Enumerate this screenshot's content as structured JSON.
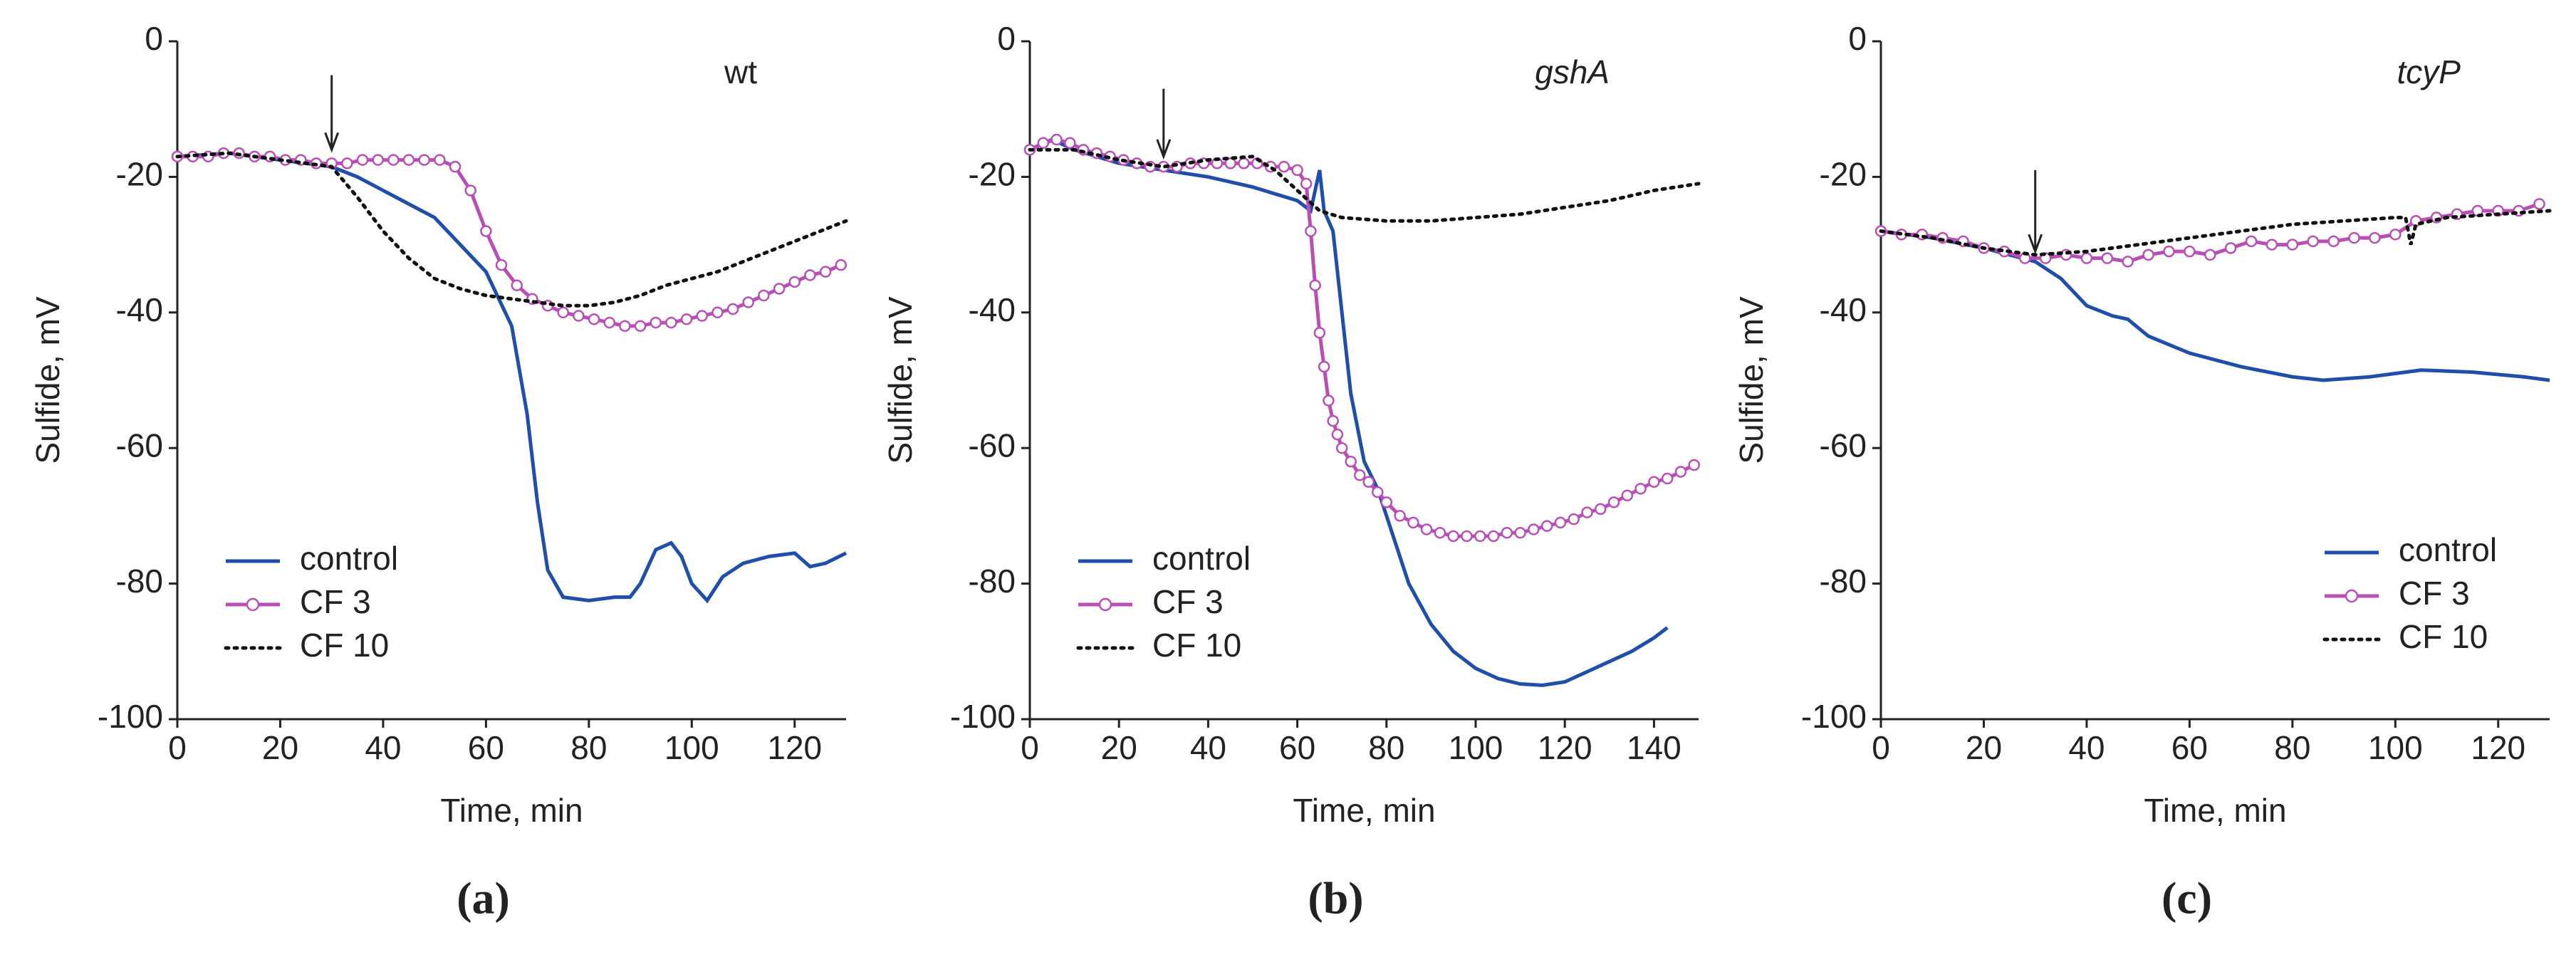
{
  "chart_data": [
    {
      "type": "line",
      "title": "wt",
      "title_italic": false,
      "caption": "(a)",
      "xlabel": "Time, min",
      "ylabel": "Sulfide, mV",
      "xlim": [
        0,
        130
      ],
      "ylim": [
        -100,
        0
      ],
      "xticks": [
        0,
        20,
        40,
        60,
        80,
        100,
        120
      ],
      "yticks": [
        0,
        -20,
        -40,
        -60,
        -80,
        -100
      ],
      "legend": "lower left",
      "arrow": {
        "x": 30,
        "y": [
          -5,
          -16
        ]
      },
      "series": [
        {
          "name": "control",
          "color": "#1f4fa8",
          "x": [
            0,
            10,
            20,
            30,
            35,
            40,
            45,
            50,
            55,
            60,
            65,
            68,
            70,
            72,
            75,
            80,
            85,
            88,
            90,
            93,
            96,
            98,
            100,
            103,
            106,
            110,
            115,
            120,
            123,
            126,
            130
          ],
          "values": [
            -17,
            -16.5,
            -17.5,
            -18.5,
            -20,
            -22,
            -24,
            -26,
            -30,
            -34,
            -42,
            -55,
            -68,
            -78,
            -82,
            -82.5,
            -82,
            -82,
            -80,
            -75,
            -74,
            -76,
            -80,
            -82.5,
            -79,
            -77,
            -76,
            -75.5,
            -77.5,
            -77,
            -75.5
          ]
        },
        {
          "name": "CF 3",
          "color": "#b94fb5",
          "marker": "circle",
          "x": [
            0,
            3,
            6,
            9,
            12,
            15,
            18,
            21,
            24,
            27,
            30,
            33,
            36,
            39,
            42,
            45,
            48,
            51,
            54,
            57,
            60,
            63,
            66,
            69,
            72,
            75,
            78,
            81,
            84,
            87,
            90,
            93,
            96,
            99,
            102,
            105,
            108,
            111,
            114,
            117,
            120,
            123,
            126,
            129
          ],
          "values": [
            -17,
            -17,
            -17,
            -16.5,
            -16.5,
            -17,
            -17,
            -17.5,
            -17.5,
            -18,
            -18,
            -18,
            -17.5,
            -17.5,
            -17.5,
            -17.5,
            -17.5,
            -17.5,
            -18.5,
            -22,
            -28,
            -33,
            -36,
            -38,
            -39,
            -40,
            -40.5,
            -41,
            -41.5,
            -42,
            -42,
            -41.5,
            -41.5,
            -41,
            -40.5,
            -40,
            -39.5,
            -38.5,
            -37.5,
            -36.5,
            -35.5,
            -34.5,
            -34,
            -33
          ]
        },
        {
          "name": "CF 10",
          "color": "#111111",
          "dash": "dotted",
          "x": [
            0,
            10,
            20,
            30,
            35,
            40,
            45,
            50,
            55,
            60,
            65,
            70,
            75,
            80,
            85,
            90,
            95,
            100,
            105,
            110,
            115,
            120,
            125,
            130
          ],
          "values": [
            -17,
            -16.5,
            -17.5,
            -18.5,
            -23,
            -28,
            -32,
            -35,
            -36.5,
            -37.5,
            -38,
            -38.5,
            -39,
            -39,
            -38.5,
            -37.5,
            -36,
            -35,
            -34,
            -32.5,
            -31,
            -29.5,
            -28,
            -26.5
          ]
        }
      ]
    },
    {
      "type": "line",
      "title": "gshA",
      "title_italic": true,
      "caption": "(b)",
      "xlabel": "Time, min",
      "ylabel": "Sulfide, mV",
      "xlim": [
        0,
        150
      ],
      "ylim": [
        -100,
        0
      ],
      "xticks": [
        0,
        20,
        40,
        60,
        80,
        100,
        120,
        140
      ],
      "yticks": [
        0,
        -20,
        -40,
        -60,
        -80,
        -100
      ],
      "legend": "lower left",
      "arrow": {
        "x": 30,
        "y": [
          -7,
          -17
        ]
      },
      "series": [
        {
          "name": "control",
          "color": "#1f4fa8",
          "x": [
            0,
            5,
            10,
            20,
            30,
            40,
            50,
            60,
            63,
            65,
            66,
            68,
            70,
            72,
            75,
            78,
            80,
            85,
            90,
            95,
            100,
            105,
            110,
            115,
            120,
            125,
            130,
            135,
            140,
            143
          ],
          "values": [
            -16,
            -14.5,
            -16,
            -18,
            -19,
            -20,
            -21.5,
            -23.5,
            -25,
            -19,
            -25,
            -28,
            -40,
            -52,
            -62,
            -66,
            -70,
            -80,
            -86,
            -90,
            -92.5,
            -94,
            -94.8,
            -95,
            -94.5,
            -93,
            -91.5,
            -90,
            -88,
            -86.5
          ]
        },
        {
          "name": "CF 3",
          "color": "#b94fb5",
          "marker": "circle",
          "x": [
            0,
            3,
            6,
            9,
            12,
            15,
            18,
            21,
            24,
            27,
            30,
            33,
            36,
            39,
            42,
            45,
            48,
            51,
            54,
            57,
            60,
            62,
            63,
            64,
            65,
            66,
            67,
            68,
            69,
            70,
            72,
            74,
            76,
            78,
            80,
            83,
            86,
            89,
            92,
            95,
            98,
            101,
            104,
            107,
            110,
            113,
            116,
            119,
            122,
            125,
            128,
            131,
            134,
            137,
            140,
            143,
            146,
            149
          ],
          "values": [
            -16,
            -15,
            -14.5,
            -15,
            -16,
            -16.5,
            -17,
            -17.5,
            -18,
            -18.5,
            -18.5,
            -18.5,
            -18,
            -18,
            -18,
            -18,
            -18,
            -18,
            -18.5,
            -18.5,
            -19,
            -21,
            -28,
            -36,
            -43,
            -48,
            -53,
            -56,
            -58,
            -60,
            -62,
            -64,
            -65,
            -66.5,
            -68,
            -70,
            -71,
            -72,
            -72.5,
            -73,
            -73,
            -73,
            -73,
            -72.5,
            -72.5,
            -72,
            -71.5,
            -71,
            -70.5,
            -69.5,
            -69,
            -68,
            -67,
            -66,
            -65,
            -64.5,
            -63.5,
            -62.5
          ]
        },
        {
          "name": "CF 10",
          "color": "#111111",
          "dash": "dotted",
          "x": [
            0,
            10,
            20,
            30,
            40,
            50,
            55,
            60,
            65,
            70,
            80,
            90,
            100,
            110,
            120,
            130,
            140,
            150
          ],
          "values": [
            -16,
            -16,
            -17.5,
            -18.5,
            -17.5,
            -17,
            -19,
            -22,
            -25,
            -26,
            -26.5,
            -26.5,
            -26,
            -25.5,
            -24.5,
            -23.5,
            -22,
            -21
          ]
        }
      ]
    },
    {
      "type": "line",
      "title": "tcyP",
      "title_italic": true,
      "caption": "(c)",
      "xlabel": "Time, min",
      "ylabel": "Sulfide, mV",
      "xlim": [
        0,
        130
      ],
      "ylim": [
        -100,
        0
      ],
      "xticks": [
        0,
        20,
        40,
        60,
        80,
        100,
        120
      ],
      "yticks": [
        0,
        -20,
        -40,
        -60,
        -80,
        -100
      ],
      "legend": "lower right",
      "arrow": {
        "x": 30,
        "y": [
          -19,
          -31
        ]
      },
      "series": [
        {
          "name": "control",
          "color": "#1f4fa8",
          "x": [
            0,
            10,
            20,
            30,
            35,
            40,
            45,
            48,
            52,
            60,
            70,
            80,
            86,
            95,
            105,
            115,
            125,
            130
          ],
          "values": [
            -28,
            -29,
            -30.5,
            -32.5,
            -35,
            -39,
            -40.5,
            -41,
            -43.5,
            -46,
            -48,
            -49.5,
            -50,
            -49.5,
            -48.5,
            -48.8,
            -49.5,
            -50
          ]
        },
        {
          "name": "CF 3",
          "color": "#b94fb5",
          "marker": "circle",
          "x": [
            0,
            4,
            8,
            12,
            16,
            20,
            24,
            28,
            32,
            36,
            40,
            44,
            48,
            52,
            56,
            60,
            64,
            68,
            72,
            76,
            80,
            84,
            88,
            92,
            96,
            100,
            104,
            108,
            112,
            116,
            120,
            124,
            128
          ],
          "values": [
            -28,
            -28.5,
            -28.5,
            -29,
            -29.5,
            -30.5,
            -31,
            -32,
            -32,
            -31.5,
            -32,
            -32,
            -32.5,
            -31.5,
            -31,
            -31,
            -31.5,
            -30.5,
            -29.5,
            -30,
            -30,
            -29.5,
            -29.5,
            -29,
            -29,
            -28.5,
            -26.5,
            -26,
            -25.5,
            -25,
            -25,
            -25,
            -24
          ]
        },
        {
          "name": "CF 10",
          "color": "#111111",
          "dash": "dotted",
          "x": [
            0,
            10,
            20,
            30,
            40,
            50,
            60,
            70,
            80,
            90,
            100,
            102,
            103,
            104,
            110,
            120,
            130
          ],
          "values": [
            -28,
            -29,
            -30.5,
            -31.5,
            -31,
            -30,
            -29,
            -28,
            -27,
            -26.5,
            -26,
            -26,
            -30,
            -27,
            -26,
            -25.5,
            -25
          ]
        }
      ]
    }
  ]
}
